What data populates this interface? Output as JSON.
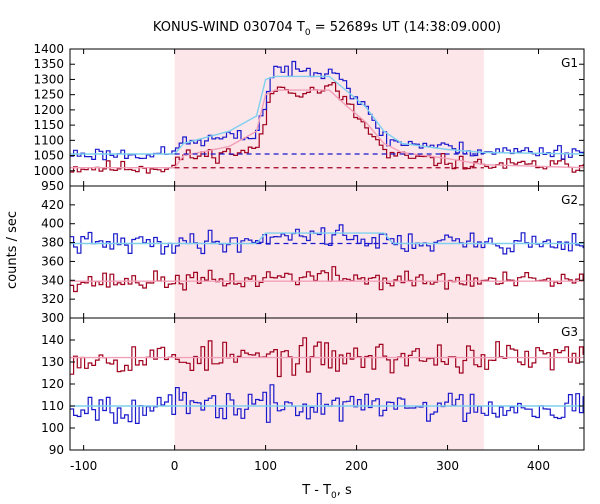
{
  "chart_data": {
    "type": "line",
    "title": {
      "prefix": "KONUS-WIND 030704 T",
      "sub": "0",
      "suffix": " = 52689s UT (14:38:09.000)"
    },
    "xlabel": {
      "prefix": "T - T",
      "sub": "0",
      "suffix": ", s"
    },
    "ylabel": "counts / sec",
    "xlim": [
      -115,
      450
    ],
    "xticks": [
      -100,
      0,
      100,
      200,
      300,
      400
    ],
    "shaded_interval": [
      0,
      340
    ],
    "colors": {
      "shade": "#fde6ea",
      "red": "#a0001e",
      "blue": "#1a1acc",
      "fit_red": "#f2a0b8",
      "fit_blue": "#7fd0ee"
    },
    "panels": [
      {
        "label": "G1",
        "ylim": [
          950,
          1400
        ],
        "yticks": [
          950,
          1000,
          1050,
          1100,
          1150,
          1200,
          1250,
          1300,
          1350,
          1400
        ],
        "series": [
          {
            "color": "red",
            "baseline": 1010,
            "amp": 265,
            "noise": 14,
            "seed": 11
          },
          {
            "color": "blue",
            "baseline": 1055,
            "amp": 285,
            "noise": 14,
            "seed": 23
          }
        ],
        "fits": [
          {
            "color": "fit_red",
            "points": [
              [
                -115,
                1010
              ],
              [
                0,
                1010
              ],
              [
                10,
                1050
              ],
              [
                60,
                1080
              ],
              [
                90,
                1130
              ],
              [
                100,
                1250
              ],
              [
                110,
                1265
              ],
              [
                170,
                1265
              ],
              [
                190,
                1210
              ],
              [
                210,
                1160
              ],
              [
                230,
                1090
              ],
              [
                250,
                1060
              ],
              [
                300,
                1040
              ],
              [
                340,
                1020
              ],
              [
                450,
                1010
              ]
            ]
          },
          {
            "color": "fit_blue",
            "points": [
              [
                -115,
                1055
              ],
              [
                0,
                1055
              ],
              [
                10,
                1090
              ],
              [
                60,
                1130
              ],
              [
                90,
                1180
              ],
              [
                100,
                1300
              ],
              [
                110,
                1310
              ],
              [
                170,
                1310
              ],
              [
                190,
                1260
              ],
              [
                210,
                1210
              ],
              [
                230,
                1130
              ],
              [
                250,
                1090
              ],
              [
                300,
                1070
              ],
              [
                340,
                1060
              ],
              [
                450,
                1055
              ]
            ]
          }
        ],
        "dashed_baselines": [
          {
            "color": "red",
            "y": 1010,
            "x": [
              0,
              340
            ]
          },
          {
            "color": "blue",
            "y": 1055,
            "x": [
              0,
              340
            ]
          }
        ]
      },
      {
        "label": "G2",
        "ylim": [
          300,
          440
        ],
        "yticks": [
          300,
          320,
          340,
          360,
          380,
          400,
          420
        ],
        "series": [
          {
            "color": "red",
            "baseline": 339,
            "amp": 5,
            "noise": 6,
            "seed": 37
          },
          {
            "color": "blue",
            "baseline": 379,
            "amp": 10,
            "noise": 7,
            "seed": 41
          }
        ],
        "fits": [
          {
            "color": "fit_red",
            "points": [
              [
                -115,
                339
              ],
              [
                450,
                339
              ]
            ]
          },
          {
            "color": "fit_blue",
            "points": [
              [
                -115,
                379
              ],
              [
                90,
                379
              ],
              [
                100,
                390
              ],
              [
                230,
                390
              ],
              [
                240,
                379
              ],
              [
                450,
                379
              ]
            ]
          }
        ],
        "dashed_baselines": [
          {
            "color": "blue",
            "y": 379,
            "x": [
              90,
              240
            ]
          }
        ]
      },
      {
        "label": "G3",
        "ylim": [
          90,
          150
        ],
        "yticks": [
          90,
          100,
          110,
          120,
          130,
          140
        ],
        "series": [
          {
            "color": "red",
            "baseline": 132,
            "amp": 0,
            "noise": 4.5,
            "seed": 53
          },
          {
            "color": "blue",
            "baseline": 110,
            "amp": 0,
            "noise": 4.5,
            "seed": 67
          }
        ],
        "fits": [
          {
            "color": "fit_red",
            "points": [
              [
                -115,
                132
              ],
              [
                450,
                132
              ]
            ]
          },
          {
            "color": "fit_blue",
            "points": [
              [
                -115,
                110
              ],
              [
                450,
                110
              ]
            ]
          }
        ],
        "dashed_baselines": []
      }
    ]
  }
}
